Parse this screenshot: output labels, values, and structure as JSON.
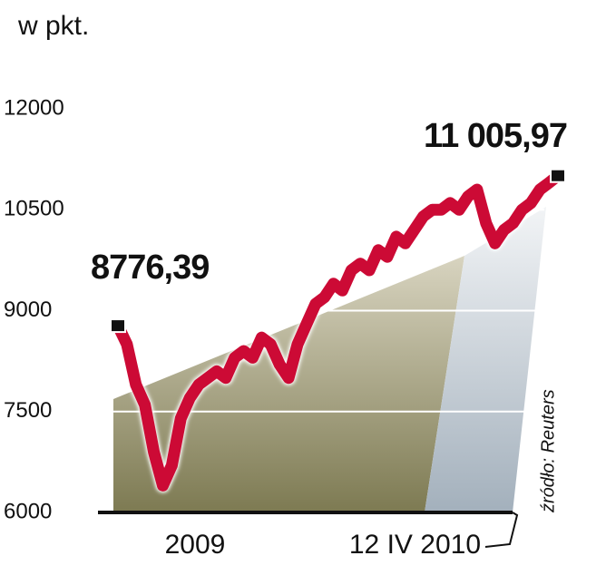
{
  "chart_data": {
    "type": "line",
    "unit_label": "w pkt.",
    "values": [
      8776.39,
      8500,
      7900,
      7600,
      6900,
      6400,
      6700,
      7400,
      7700,
      7900,
      8000,
      8100,
      8000,
      8300,
      8400,
      8300,
      8600,
      8500,
      8200,
      8000,
      8500,
      8800,
      9100,
      9200,
      9400,
      9300,
      9600,
      9700,
      9600,
      9900,
      9800,
      10100,
      10000,
      10200,
      10400,
      10500,
      10500,
      10600,
      10500,
      10700,
      10800,
      10300,
      10000,
      10200,
      10300,
      10500,
      10600,
      10800,
      10900,
      11005.97
    ],
    "value_labels": [
      "8776,39",
      null,
      null,
      null,
      null,
      null,
      null,
      null,
      null,
      null,
      null,
      null,
      null,
      null,
      null,
      null,
      null,
      null,
      null,
      null,
      null,
      null,
      null,
      null,
      null,
      null,
      null,
      null,
      null,
      null,
      null,
      null,
      null,
      null,
      null,
      null,
      null,
      null,
      null,
      null,
      null,
      null,
      null,
      null,
      null,
      null,
      null,
      null,
      null,
      "11 005,97"
    ],
    "color": "#cc0a35",
    "ylim": [
      6000,
      12000
    ],
    "yticks": [
      6000,
      7500,
      9000,
      10500,
      12000
    ],
    "grid": true,
    "x_labels": [
      "2009",
      "12 IV 2010"
    ],
    "source": "źródło: Reuters"
  }
}
